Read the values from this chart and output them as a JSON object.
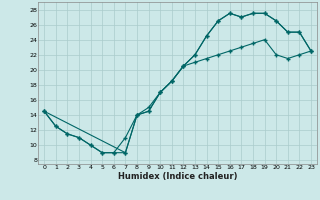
{
  "title": "",
  "xlabel": "Humidex (Indice chaleur)",
  "bg_color": "#cce8e8",
  "grid_color": "#aacccc",
  "line_color": "#006666",
  "xlim": [
    -0.5,
    23.5
  ],
  "ylim": [
    7.5,
    29
  ],
  "xticks": [
    0,
    1,
    2,
    3,
    4,
    5,
    6,
    7,
    8,
    9,
    10,
    11,
    12,
    13,
    14,
    15,
    16,
    17,
    18,
    19,
    20,
    21,
    22,
    23
  ],
  "yticks": [
    8,
    10,
    12,
    14,
    16,
    18,
    20,
    22,
    24,
    26,
    28
  ],
  "line1_x": [
    0,
    1,
    2,
    3,
    4,
    5,
    6,
    7,
    8,
    9,
    10,
    11,
    12,
    13,
    14,
    15,
    16,
    17,
    18,
    19,
    20,
    21,
    22,
    23
  ],
  "line1_y": [
    14.5,
    12.5,
    11.5,
    11.0,
    10.0,
    9.0,
    9.0,
    9.0,
    14.0,
    14.5,
    17.0,
    18.5,
    20.5,
    22.0,
    24.5,
    26.5,
    27.5,
    27.0,
    27.5,
    27.5,
    26.5,
    25.0,
    25.0,
    22.5
  ],
  "line2_x": [
    0,
    1,
    2,
    3,
    4,
    5,
    6,
    7,
    8,
    9,
    10,
    11,
    12,
    13,
    14,
    15,
    16,
    17,
    18,
    19,
    20,
    21,
    22,
    23
  ],
  "line2_y": [
    14.5,
    12.5,
    11.5,
    11.0,
    10.0,
    9.0,
    9.0,
    11.0,
    14.0,
    15.0,
    17.0,
    18.5,
    20.5,
    21.0,
    21.5,
    22.0,
    22.5,
    23.0,
    23.5,
    24.0,
    22.0,
    21.5,
    22.0,
    22.5
  ],
  "line3_x": [
    0,
    7,
    8,
    9,
    10,
    11,
    12,
    13,
    14,
    15,
    16,
    17,
    18,
    19,
    20,
    21,
    22,
    23
  ],
  "line3_y": [
    14.5,
    9.0,
    14.0,
    14.5,
    17.0,
    18.5,
    20.5,
    22.0,
    24.5,
    26.5,
    27.5,
    27.0,
    27.5,
    27.5,
    26.5,
    25.0,
    25.0,
    22.5
  ]
}
